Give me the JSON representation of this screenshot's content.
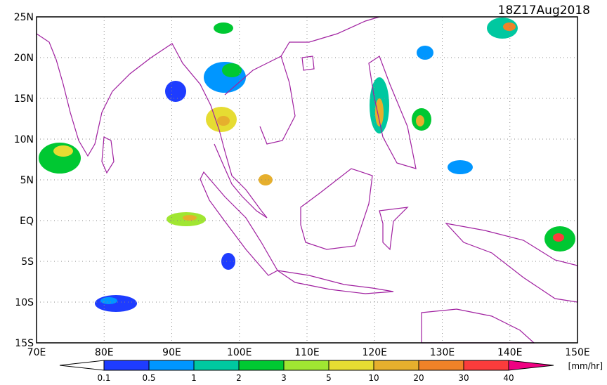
{
  "title": "18Z17Aug2018",
  "lat_labels": [
    "25N",
    "20N",
    "15N",
    "10N",
    "5N",
    "EQ",
    "5S",
    "10S",
    "15S"
  ],
  "lon_labels": [
    "70E",
    "80E",
    "90E",
    "100E",
    "110E",
    "120E",
    "130E",
    "140E",
    "150E"
  ],
  "colorbar": {
    "labels": [
      0.1,
      0.5,
      1,
      2,
      3,
      5,
      10,
      20,
      30,
      40
    ],
    "colors": [
      "#1e3cff",
      "#0096ff",
      "#00c8a0",
      "#00c832",
      "#a0e632",
      "#e6dc32",
      "#e6af2d",
      "#f08228",
      "#fa3c3c",
      "#f00082"
    ],
    "unit": "[mm/hr]"
  }
}
